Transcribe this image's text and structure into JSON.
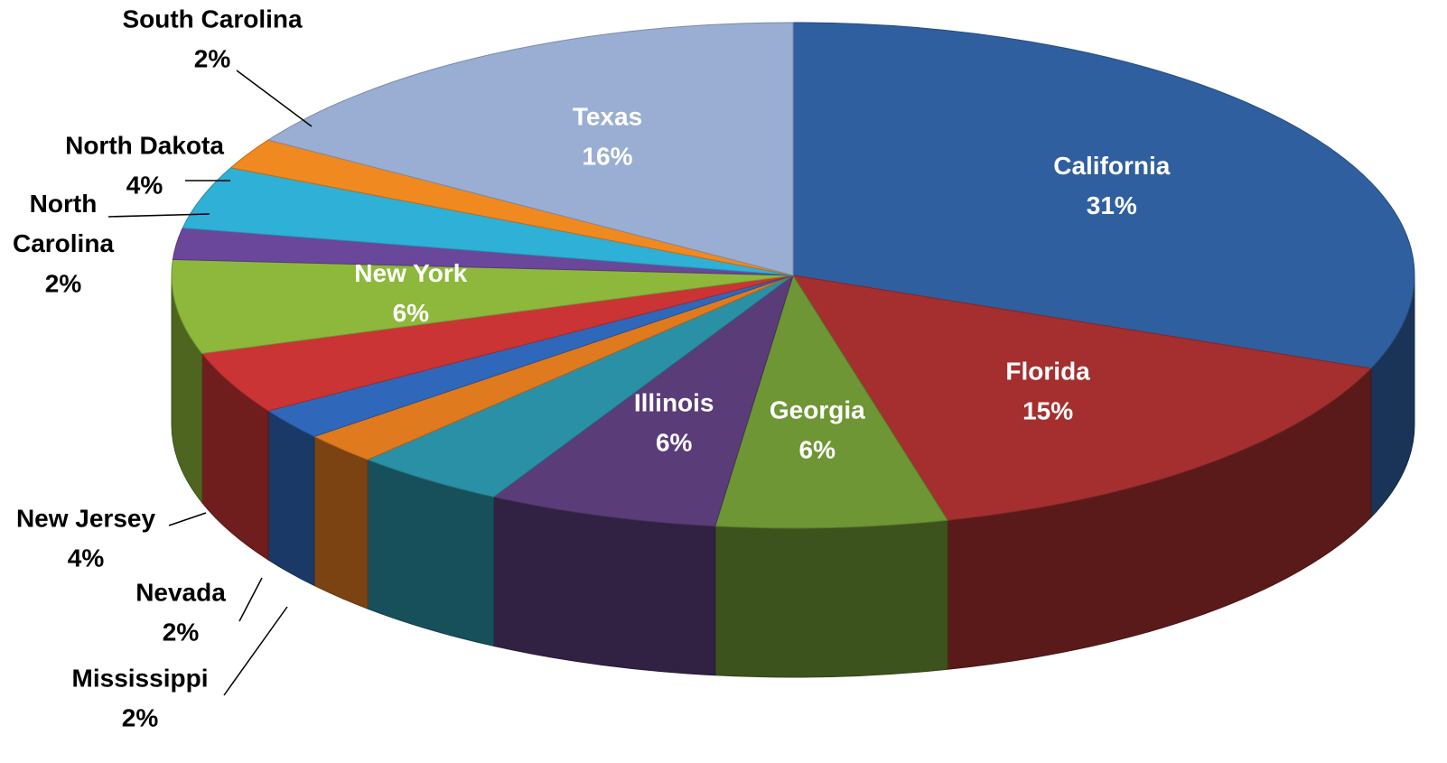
{
  "chart_data": {
    "type": "pie",
    "categories": [
      "California",
      "Florida",
      "Georgia",
      "Illinois",
      null,
      "Mississippi",
      "Nevada",
      "New Jersey",
      "New York",
      "North Carolina",
      "North Dakota",
      "South Carolina",
      "Texas"
    ],
    "values": [
      31,
      15,
      6,
      6,
      4,
      2,
      2,
      4,
      6,
      2,
      4,
      2,
      16
    ],
    "value_labels": [
      "31%",
      "15%",
      "6%",
      "6%",
      null,
      "2%",
      "2%",
      "4%",
      "6%",
      "2%",
      "4%",
      "2%",
      "16%"
    ],
    "colors": [
      "#2f5f9f",
      "#a52f2f",
      "#6e9634",
      "#593c78",
      "#2a90a5",
      "#e07a1e",
      "#2f68bb",
      "#cb3434",
      "#8db83b",
      "#6a479a",
      "#2fb0d6",
      "#f0891f",
      "#9aaed3"
    ]
  }
}
